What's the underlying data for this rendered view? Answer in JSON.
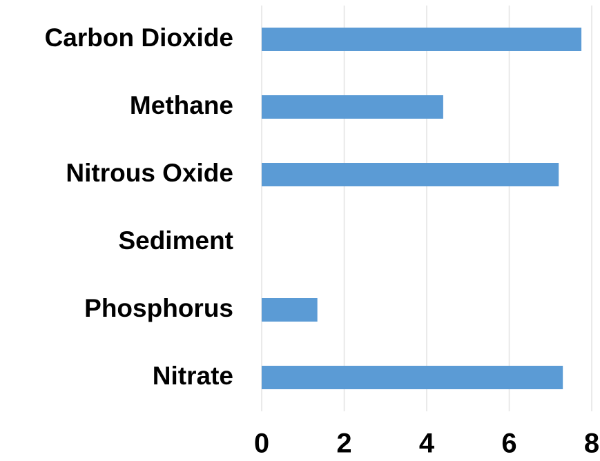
{
  "chart_data": {
    "type": "bar",
    "orientation": "horizontal",
    "categories": [
      "Carbon Dioxide",
      "Methane",
      "Nitrous Oxide",
      "Sediment",
      "Phosphorus",
      "Nitrate"
    ],
    "values": [
      7.75,
      4.4,
      7.2,
      0,
      1.35,
      7.3
    ],
    "color": "#5b9bd5",
    "xlim": [
      0,
      8
    ],
    "xticks": [
      0,
      2,
      4,
      6,
      8
    ],
    "grid": true
  }
}
